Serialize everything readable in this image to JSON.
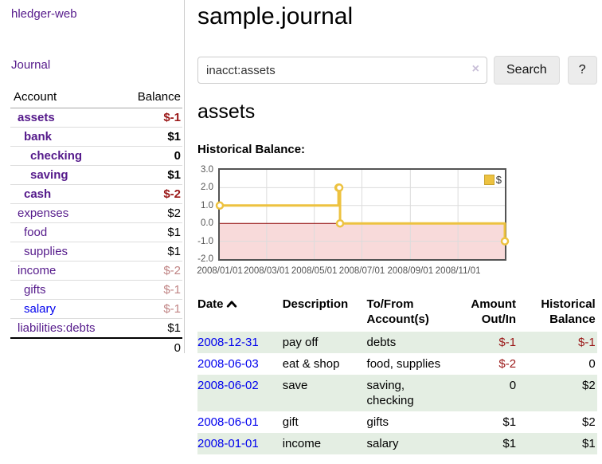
{
  "app": {
    "title": "hledger-web"
  },
  "sidebar": {
    "journal_link": "Journal",
    "accounts_header": {
      "account": "Account",
      "balance": "Balance"
    },
    "accounts": [
      {
        "name": "assets",
        "balance": "$-1"
      },
      {
        "name": "bank",
        "balance": "$1"
      },
      {
        "name": "checking",
        "balance": "0"
      },
      {
        "name": "saving",
        "balance": "$1"
      },
      {
        "name": "cash",
        "balance": "$-2"
      },
      {
        "name": "expenses",
        "balance": "$2"
      },
      {
        "name": "food",
        "balance": "$1"
      },
      {
        "name": "supplies",
        "balance": "$1"
      },
      {
        "name": "income",
        "balance": "$-2"
      },
      {
        "name": "gifts",
        "balance": "$-1"
      },
      {
        "name": "salary",
        "balance": "$-1"
      },
      {
        "name": "liabilities:debts",
        "balance": "$1"
      }
    ],
    "total": "0"
  },
  "header": {
    "title": "sample.journal"
  },
  "search": {
    "value": "inacct:assets",
    "clear_icon": "×",
    "button_label": "Search",
    "help_label": "?"
  },
  "account_page": {
    "title": "assets",
    "chart_label": "Historical Balance:"
  },
  "chart_data": {
    "type": "line",
    "step": true,
    "title": "Historical Balance:",
    "series": [
      {
        "name": "$",
        "color": "#edc240",
        "points": [
          {
            "date": "2008-01-01",
            "value": 1
          },
          {
            "date": "2008-06-01",
            "value": 2
          },
          {
            "date": "2008-06-02",
            "value": 2
          },
          {
            "date": "2008-06-03",
            "value": 0
          },
          {
            "date": "2008-12-31",
            "value": -1
          }
        ]
      }
    ],
    "ylim": [
      -2,
      3
    ],
    "yticks": [
      "3.0",
      "2.0",
      "1.0",
      "0.0",
      "-1.0",
      "-2.0"
    ],
    "xticks": [
      "2008/01/01",
      "2008/03/01",
      "2008/05/01",
      "2008/07/01",
      "2008/09/01",
      "2008/11/01"
    ],
    "legend_position": "top-right",
    "grid": true,
    "negative_fill": "#f8dada",
    "zero_line_color": "#8b0000"
  },
  "register": {
    "columns": {
      "date": "Date",
      "description": "Description",
      "tofrom": "To/From Account(s)",
      "amount": "Amount Out/In",
      "balance": "Historical Balance"
    },
    "rows": [
      {
        "date": "2008-12-31",
        "description": "pay off",
        "accounts": "debts",
        "amount": "$-1",
        "balance": "$-1"
      },
      {
        "date": "2008-06-03",
        "description": "eat & shop",
        "accounts": "food, supplies",
        "amount": "$-2",
        "balance": "0"
      },
      {
        "date": "2008-06-02",
        "description": "save",
        "accounts": "saving,\nchecking",
        "amount": "0",
        "balance": "$2"
      },
      {
        "date": "2008-06-01",
        "description": "gift",
        "accounts": "gifts",
        "amount": "$1",
        "balance": "$2"
      },
      {
        "date": "2008-01-01",
        "description": "income",
        "accounts": "salary",
        "amount": "$1",
        "balance": "$1"
      }
    ]
  }
}
